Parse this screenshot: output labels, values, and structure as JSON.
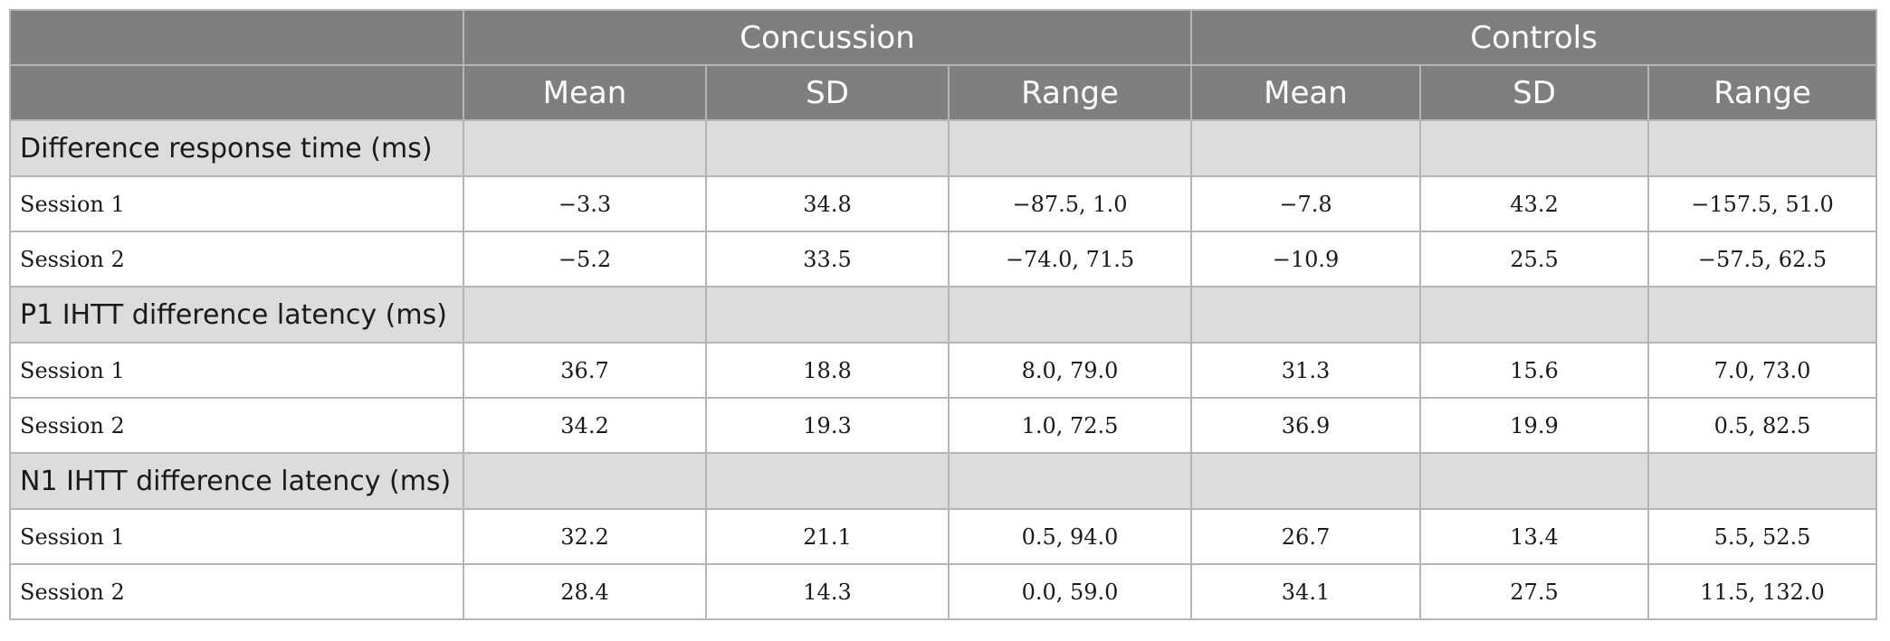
{
  "header": {
    "groups": [
      "Concussion",
      "Controls"
    ],
    "columns": [
      "Mean",
      "SD",
      "Range",
      "Mean",
      "SD",
      "Range"
    ]
  },
  "sections": [
    {
      "title": "Difference response time (ms)",
      "rows": [
        {
          "label": "Session 1",
          "values": [
            "−3.3",
            "34.8",
            "−87.5, 1.0",
            "−7.8",
            "43.2",
            "−157.5, 51.0"
          ]
        },
        {
          "label": "Session 2",
          "values": [
            "−5.2",
            "33.5",
            "−74.0, 71.5",
            "−10.9",
            "25.5",
            "−57.5, 62.5"
          ]
        }
      ]
    },
    {
      "title": "P1 IHTT difference latency (ms)",
      "rows": [
        {
          "label": "Session 1",
          "values": [
            "36.7",
            "18.8",
            "8.0, 79.0",
            "31.3",
            "15.6",
            "7.0, 73.0"
          ]
        },
        {
          "label": "Session 2",
          "values": [
            "34.2",
            "19.3",
            "1.0, 72.5",
            "36.9",
            "19.9",
            "0.5, 82.5"
          ]
        }
      ]
    },
    {
      "title": "N1 IHTT difference latency (ms)",
      "rows": [
        {
          "label": "Session 1",
          "values": [
            "32.2",
            "21.1",
            "0.5, 94.0",
            "26.7",
            "13.4",
            "5.5, 52.5"
          ]
        },
        {
          "label": "Session 2",
          "values": [
            "28.4",
            "14.3",
            "0.0, 59.0",
            "34.1",
            "27.5",
            "11.5, 132.0"
          ]
        }
      ]
    }
  ],
  "colors": {
    "header_bg": "#7f7f7f",
    "group_bg": "#dcdcdc",
    "border": "#b5b5b5"
  }
}
